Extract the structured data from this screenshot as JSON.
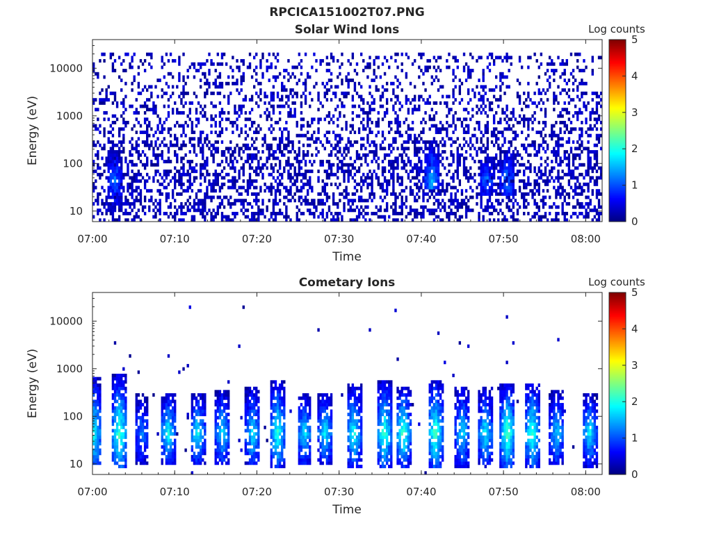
{
  "figure": {
    "title": "RPCICA151002T07.PNG"
  },
  "chart_data": [
    {
      "type": "heatmap",
      "title": "Solar Wind Ions",
      "xlabel": "Time",
      "ylabel": "Energy (eV)",
      "x_range": [
        "07:00",
        "08:02"
      ],
      "x_ticks": [
        "07:00",
        "07:10",
        "07:20",
        "07:30",
        "07:40",
        "07:50",
        "08:00"
      ],
      "y_scale": "log",
      "y_range": [
        6,
        40000
      ],
      "y_ticks": [
        "10",
        "100",
        "1000",
        "10000"
      ],
      "colorbar": {
        "label": "Log counts",
        "ticks": [
          "0",
          "1",
          "2",
          "3",
          "4",
          "5"
        ],
        "range": [
          0,
          5
        ],
        "colormap": "jet"
      },
      "description": "sparse low counts (log ~0-0.5) across 10 eV - 20 keV, densest below 300 eV",
      "noise_density": 0.28,
      "noise_max_energy": 20000,
      "bursts": [
        {
          "time_min": 2.7,
          "e_low": 10,
          "e_high": 200,
          "level": 1.2
        },
        {
          "time_min": 41.3,
          "e_low": 30,
          "e_high": 300,
          "level": 1.5
        },
        {
          "time_min": 48.0,
          "e_low": 20,
          "e_high": 150,
          "level": 1.2
        },
        {
          "time_min": 50.5,
          "e_low": 20,
          "e_high": 200,
          "level": 1.3
        }
      ]
    },
    {
      "type": "heatmap",
      "title": "Cometary Ions",
      "xlabel": "Time",
      "ylabel": "Energy (eV)",
      "x_range": [
        "07:00",
        "08:02"
      ],
      "x_ticks": [
        "07:00",
        "07:10",
        "07:20",
        "07:30",
        "07:40",
        "07:50",
        "08:00"
      ],
      "y_scale": "log",
      "y_range": [
        6,
        40000
      ],
      "y_ticks": [
        "10",
        "100",
        "1000",
        "10000"
      ],
      "colorbar": {
        "label": "Log counts",
        "ticks": [
          "0",
          "1",
          "2",
          "3",
          "4",
          "5"
        ],
        "range": [
          0,
          5
        ],
        "colormap": "jet"
      },
      "description": "periodic bursts of cometary ions with peak ~40-60 eV, log counts up to ~2.5",
      "noise_density": 0.004,
      "noise_max_energy": 20000,
      "bursts": [
        {
          "time_min": 0.2,
          "e_low": 10,
          "e_high": 700,
          "level": 2.0
        },
        {
          "time_min": 3.3,
          "e_low": 8,
          "e_high": 750,
          "level": 2.3
        },
        {
          "time_min": 6.0,
          "e_low": 10,
          "e_high": 300,
          "level": 1.3
        },
        {
          "time_min": 9.2,
          "e_low": 10,
          "e_high": 300,
          "level": 2.0
        },
        {
          "time_min": 12.8,
          "e_low": 10,
          "e_high": 300,
          "level": 2.0
        },
        {
          "time_min": 15.8,
          "e_low": 10,
          "e_high": 350,
          "level": 1.8
        },
        {
          "time_min": 19.5,
          "e_low": 10,
          "e_high": 400,
          "level": 1.8
        },
        {
          "time_min": 22.5,
          "e_low": 8,
          "e_high": 600,
          "level": 2.1
        },
        {
          "time_min": 25.8,
          "e_low": 10,
          "e_high": 300,
          "level": 1.8
        },
        {
          "time_min": 28.3,
          "e_low": 10,
          "e_high": 300,
          "level": 1.9
        },
        {
          "time_min": 31.8,
          "e_low": 8,
          "e_high": 500,
          "level": 2.0
        },
        {
          "time_min": 35.5,
          "e_low": 8,
          "e_high": 600,
          "level": 2.2
        },
        {
          "time_min": 37.8,
          "e_low": 8,
          "e_high": 400,
          "level": 2.3
        },
        {
          "time_min": 41.7,
          "e_low": 8,
          "e_high": 600,
          "level": 2.3
        },
        {
          "time_min": 45.0,
          "e_low": 8,
          "e_high": 400,
          "level": 1.8
        },
        {
          "time_min": 47.8,
          "e_low": 10,
          "e_high": 400,
          "level": 1.9
        },
        {
          "time_min": 50.5,
          "e_low": 8,
          "e_high": 500,
          "level": 2.4
        },
        {
          "time_min": 53.5,
          "e_low": 8,
          "e_high": 500,
          "level": 2.2
        },
        {
          "time_min": 56.5,
          "e_low": 10,
          "e_high": 350,
          "level": 1.7
        },
        {
          "time_min": 60.5,
          "e_low": 8,
          "e_high": 300,
          "level": 1.9
        }
      ]
    }
  ]
}
